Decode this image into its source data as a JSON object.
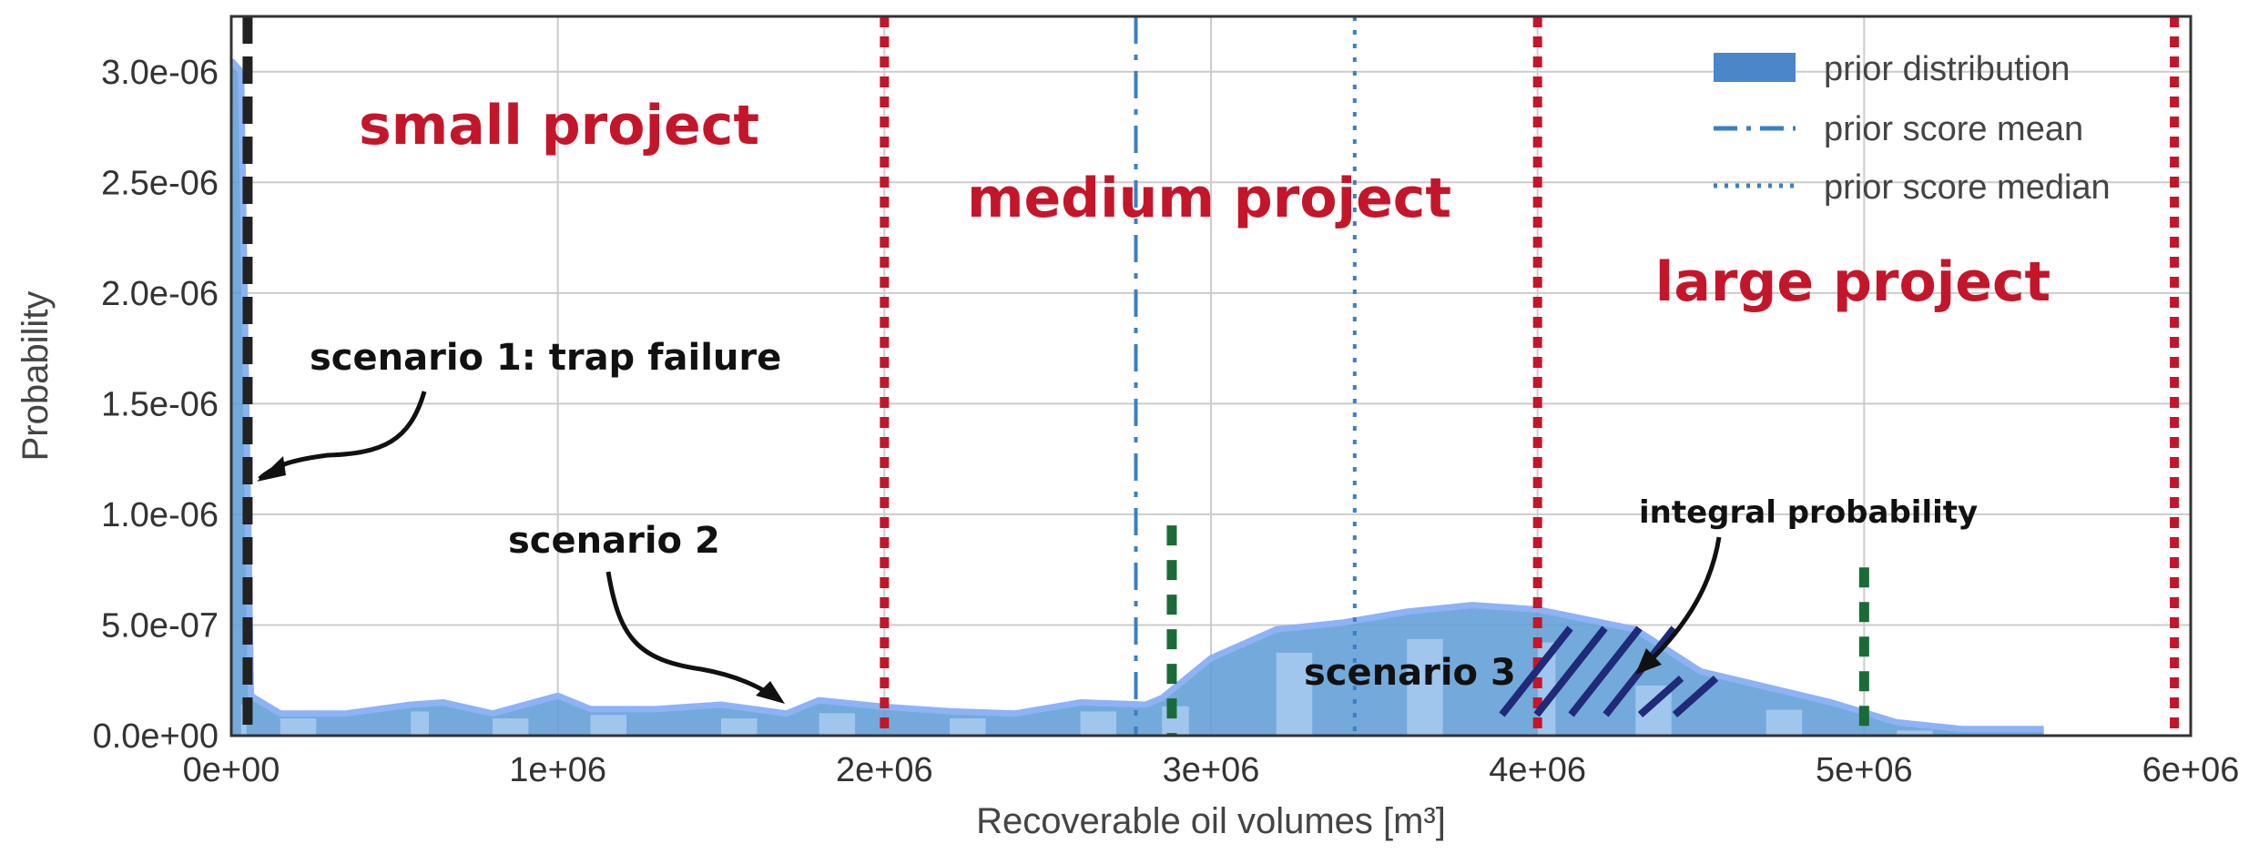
{
  "chart_data": {
    "type": "area",
    "title": "",
    "xlabel": "Recoverable oil volumes [m³]",
    "ylabel": "Probability",
    "xlim": [
      0,
      6000000
    ],
    "ylim": [
      0,
      3.25e-06
    ],
    "grid": true,
    "x_ticks": [
      0,
      1000000,
      2000000,
      3000000,
      4000000,
      5000000,
      6000000
    ],
    "x_tick_labels": [
      "0e+00",
      "1e+06",
      "2e+06",
      "3e+06",
      "4e+06",
      "5e+06",
      "6e+06"
    ],
    "y_ticks": [
      0,
      5e-07,
      1e-06,
      1.5e-06,
      2e-06,
      2.5e-06,
      3e-06
    ],
    "y_tick_labels": [
      "0.0e+00",
      "5.0e-07",
      "1.0e-06",
      "1.5e-06",
      "2.0e-06",
      "2.5e-06",
      "3.0e-06"
    ],
    "legend": {
      "position": "top-right",
      "entries": [
        "prior distribution",
        "prior score mean",
        "prior score median"
      ]
    },
    "series": [
      {
        "name": "prior distribution",
        "style": "histogram-kde",
        "color": "#5b9bd5",
        "x": [
          0,
          30000,
          60000,
          150000,
          350000,
          550000,
          650000,
          800000,
          1000000,
          1100000,
          1300000,
          1500000,
          1700000,
          1800000,
          2000000,
          2200000,
          2400000,
          2600000,
          2800000,
          2850000,
          3000000,
          3200000,
          3400000,
          3600000,
          3800000,
          4000000,
          4100000,
          4300000,
          4500000,
          4700000,
          4900000,
          5100000,
          5300000,
          5550000
        ],
        "y": [
          3.05e-06,
          3e-06,
          1.8e-07,
          1e-07,
          1e-07,
          1.4e-07,
          1.5e-07,
          1e-07,
          1.8e-07,
          1.2e-07,
          1.2e-07,
          1.4e-07,
          1e-07,
          1.6e-07,
          1.3e-07,
          1.1e-07,
          1e-07,
          1.5e-07,
          1.4e-07,
          1.7e-07,
          3.5e-07,
          4.8e-07,
          5.1e-07,
          5.6e-07,
          5.9e-07,
          5.7e-07,
          5.4e-07,
          4.8e-07,
          2.9e-07,
          2.2e-07,
          1.5e-07,
          6e-08,
          3e-08,
          3e-08
        ]
      }
    ],
    "vertical_lines": [
      {
        "kind": "prior score mean",
        "x": 2770000,
        "style": "dashdot",
        "color": "#3b7fc4"
      },
      {
        "kind": "prior score median",
        "x": 3440000,
        "style": "dotted",
        "color": "#3b7fc4"
      },
      {
        "kind": "scenario 1",
        "x": 50000,
        "style": "dashed",
        "color": "#222222"
      },
      {
        "kind": "project boundary",
        "x": 2000000,
        "style": "dotted",
        "color": "#c4162a"
      },
      {
        "kind": "project boundary",
        "x": 4000000,
        "style": "dotted",
        "color": "#c4162a"
      },
      {
        "kind": "project boundary",
        "x": 5950000,
        "style": "dotted",
        "color": "#c4162a"
      },
      {
        "kind": "integration limit",
        "x": 2880000,
        "y_top": 9.5e-07,
        "style": "dashed",
        "color": "#1a6b38"
      },
      {
        "kind": "integration limit",
        "x": 5000000,
        "y_top": 7.6e-07,
        "style": "dashed",
        "color": "#1a6b38"
      }
    ],
    "region_labels": [
      "small project",
      "medium project",
      "large project"
    ],
    "annotations": [
      {
        "text": "scenario 1: trap failure"
      },
      {
        "text": "scenario 2"
      },
      {
        "text": "scenario 3"
      },
      {
        "text": "integral probability"
      }
    ],
    "colors": {
      "fill": "#5b9bd5",
      "kde_line": "#8db2f5",
      "region_lines": "#c4162a",
      "integration_lines": "#1a6b38",
      "hatch": "#1f2a78"
    }
  }
}
